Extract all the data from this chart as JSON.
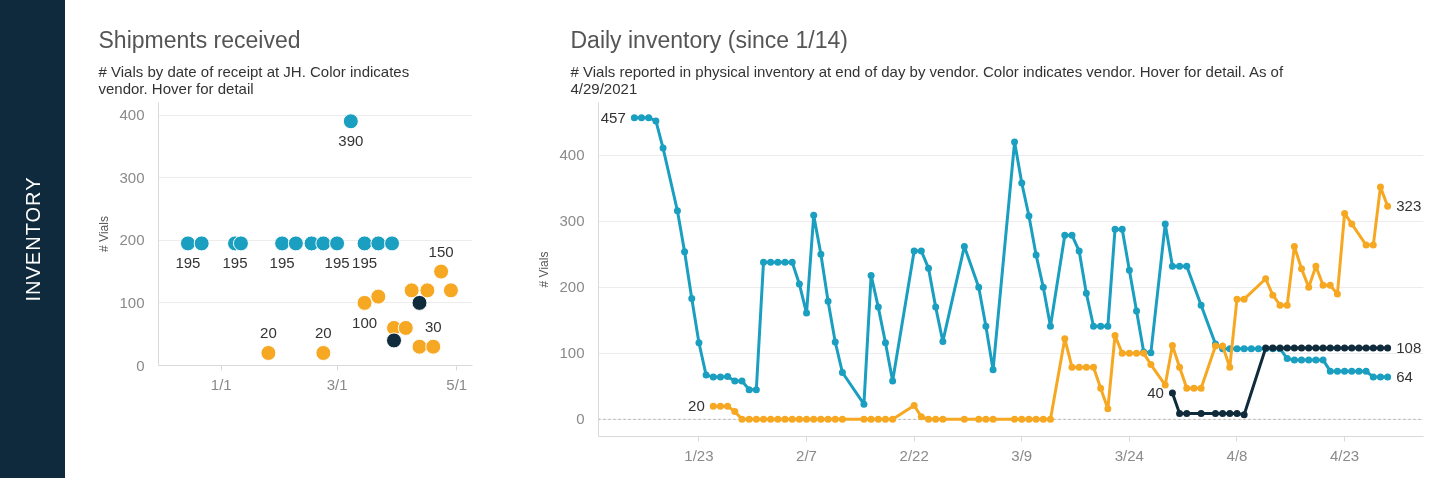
{
  "chart_data": [
    {
      "type": "other",
      "title": "INVENTORY"
    },
    {
      "type": "scatter",
      "title": "Shipments received",
      "subtitle": "# Vials by date of receipt at JH. Color indicates vendor. Hover for detail",
      "ylabel": "# Vials",
      "xlim": [
        "2020-11-30",
        "2021-05-09"
      ],
      "ylim": [
        0,
        420
      ],
      "xticks": [
        {
          "value": "2021-01-01",
          "label": "1/1"
        },
        {
          "value": "2021-03-01",
          "label": "3/1"
        },
        {
          "value": "2021-05-01",
          "label": "5/1"
        }
      ],
      "yticks": [
        0,
        100,
        200,
        300,
        400
      ],
      "grid": "y",
      "marker": "circle",
      "series": [
        {
          "color": "#1a9fc1",
          "x": [
            "2020-12-15",
            "2020-12-22",
            "2021-01-08",
            "2021-01-11",
            "2021-02-01",
            "2021-02-08",
            "2021-02-16",
            "2021-02-22",
            "2021-03-01",
            "2021-03-08",
            "2021-03-15",
            "2021-03-22",
            "2021-03-29"
          ],
          "values": [
            195,
            195,
            195,
            195,
            195,
            195,
            195,
            195,
            195,
            390,
            195,
            195,
            195
          ],
          "value_labels": [
            "195",
            null,
            "195",
            null,
            "195",
            null,
            null,
            null,
            "195",
            "390",
            "195",
            null,
            null
          ]
        },
        {
          "color": "#f7a823",
          "x": [
            "2021-01-25",
            "2021-02-22",
            "2021-03-15",
            "2021-03-22",
            "2021-03-30",
            "2021-04-05",
            "2021-04-08",
            "2021-04-12",
            "2021-04-16",
            "2021-04-19",
            "2021-04-23",
            "2021-04-28"
          ],
          "values": [
            20,
            20,
            100,
            110,
            60,
            60,
            120,
            30,
            120,
            30,
            150,
            120
          ],
          "value_labels": [
            "20",
            "20",
            "100",
            null,
            null,
            null,
            null,
            null,
            null,
            "30",
            "150",
            null
          ]
        },
        {
          "color": "#0f2b3c",
          "x": [
            "2021-03-30",
            "2021-04-12"
          ],
          "values": [
            40,
            100
          ]
        }
      ]
    },
    {
      "type": "line",
      "title": "Daily inventory (since 1/14)",
      "subtitle": "# Vials reported in physical inventory at end of day by vendor. Color indicates vendor. Hover for detail. As of 4/29/2021",
      "ylabel": "# Vials",
      "xlim": [
        "2021-01-09",
        "2021-05-04"
      ],
      "ylim": [
        -26,
        480
      ],
      "xticks": [
        {
          "value": "2021-01-23",
          "label": "1/23"
        },
        {
          "value": "2021-02-07",
          "label": "2/7"
        },
        {
          "value": "2021-02-22",
          "label": "2/22"
        },
        {
          "value": "2021-03-09",
          "label": "3/9"
        },
        {
          "value": "2021-03-24",
          "label": "3/24"
        },
        {
          "value": "2021-04-08",
          "label": "4/8"
        },
        {
          "value": "2021-04-23",
          "label": "4/23"
        }
      ],
      "yticks": [
        0,
        100,
        200,
        300,
        400
      ],
      "grid": "y",
      "marker": "circle",
      "line_style": "solid",
      "ref_lines": [
        {
          "axis": "y",
          "value": 0,
          "color": "#aaaaaa",
          "line_style": "dotted"
        }
      ],
      "series": [
        {
          "color": "#1a9fc1",
          "x": [
            "2021-01-14",
            "2021-01-15",
            "2021-01-16",
            "2021-01-17",
            "2021-01-18",
            "2021-01-20",
            "2021-01-21",
            "2021-01-22",
            "2021-01-23",
            "2021-01-24",
            "2021-01-25",
            "2021-01-26",
            "2021-01-27",
            "2021-01-28",
            "2021-01-29",
            "2021-01-30",
            "2021-01-31",
            "2021-02-01",
            "2021-02-02",
            "2021-02-03",
            "2021-02-04",
            "2021-02-05",
            "2021-02-06",
            "2021-02-07",
            "2021-02-08",
            "2021-02-09",
            "2021-02-10",
            "2021-02-11",
            "2021-02-12",
            "2021-02-15",
            "2021-02-16",
            "2021-02-17",
            "2021-02-18",
            "2021-02-19",
            "2021-02-22",
            "2021-02-23",
            "2021-02-24",
            "2021-02-25",
            "2021-02-26",
            "2021-03-01",
            "2021-03-03",
            "2021-03-04",
            "2021-03-05",
            "2021-03-08",
            "2021-03-09",
            "2021-03-10",
            "2021-03-11",
            "2021-03-12",
            "2021-03-13",
            "2021-03-15",
            "2021-03-16",
            "2021-03-17",
            "2021-03-18",
            "2021-03-19",
            "2021-03-20",
            "2021-03-21",
            "2021-03-22",
            "2021-03-23",
            "2021-03-24",
            "2021-03-25",
            "2021-03-26",
            "2021-03-27",
            "2021-03-29",
            "2021-03-30",
            "2021-03-31",
            "2021-04-01",
            "2021-04-03",
            "2021-04-05",
            "2021-04-06",
            "2021-04-07",
            "2021-04-08",
            "2021-04-09",
            "2021-04-10",
            "2021-04-11",
            "2021-04-12",
            "2021-04-13",
            "2021-04-14",
            "2021-04-15",
            "2021-04-16",
            "2021-04-17",
            "2021-04-18",
            "2021-04-19",
            "2021-04-20",
            "2021-04-21",
            "2021-04-22",
            "2021-04-23",
            "2021-04-24",
            "2021-04-25",
            "2021-04-26",
            "2021-04-27",
            "2021-04-28",
            "2021-04-29"
          ],
          "values": [
            457,
            457,
            457,
            452,
            411,
            316,
            254,
            183,
            116,
            67,
            64,
            64,
            65,
            58,
            58,
            45,
            45,
            238,
            238,
            238,
            238,
            238,
            205,
            161,
            309,
            250,
            179,
            117,
            71,
            23,
            218,
            170,
            116,
            58,
            255,
            255,
            229,
            170,
            118,
            262,
            200,
            141,
            75,
            420,
            358,
            308,
            249,
            200,
            141,
            279,
            279,
            255,
            191,
            141,
            141,
            141,
            288,
            288,
            226,
            164,
            102,
            101,
            296,
            232,
            232,
            232,
            173,
            114,
            107,
            107,
            107,
            107,
            107,
            107,
            107,
            107,
            107,
            92,
            90,
            90,
            90,
            90,
            90,
            73,
            73,
            73,
            73,
            73,
            73,
            64,
            64,
            64
          ],
          "value_labels": [
            "457",
            null,
            null,
            null,
            null,
            null,
            null,
            null,
            null,
            null,
            null,
            null,
            null,
            null,
            null,
            null,
            null,
            null,
            null,
            null,
            null,
            null,
            null,
            null,
            null,
            null,
            null,
            null,
            null,
            null,
            null,
            null,
            null,
            null,
            null,
            null,
            null,
            null,
            null,
            null,
            null,
            null,
            null,
            null,
            null,
            null,
            null,
            null,
            null,
            null,
            null,
            null,
            null,
            null,
            null,
            null,
            null,
            null,
            null,
            null,
            null,
            null,
            null,
            null,
            null,
            null,
            null,
            null,
            null,
            null,
            null,
            null,
            null,
            null,
            null,
            null,
            null,
            null,
            null,
            null,
            null,
            null,
            null,
            null,
            null,
            null,
            null,
            null,
            null,
            null,
            null,
            "64"
          ]
        },
        {
          "color": "#f7a823",
          "x": [
            "2021-01-25",
            "2021-01-26",
            "2021-01-27",
            "2021-01-28",
            "2021-01-29",
            "2021-01-30",
            "2021-01-31",
            "2021-02-01",
            "2021-02-02",
            "2021-02-03",
            "2021-02-04",
            "2021-02-05",
            "2021-02-06",
            "2021-02-07",
            "2021-02-08",
            "2021-02-09",
            "2021-02-10",
            "2021-02-11",
            "2021-02-12",
            "2021-02-15",
            "2021-02-16",
            "2021-02-17",
            "2021-02-18",
            "2021-02-19",
            "2021-02-22",
            "2021-02-23",
            "2021-02-24",
            "2021-02-25",
            "2021-02-26",
            "2021-03-01",
            "2021-03-03",
            "2021-03-04",
            "2021-03-05",
            "2021-03-08",
            "2021-03-09",
            "2021-03-10",
            "2021-03-11",
            "2021-03-12",
            "2021-03-13",
            "2021-03-15",
            "2021-03-16",
            "2021-03-17",
            "2021-03-18",
            "2021-03-19",
            "2021-03-20",
            "2021-03-21",
            "2021-03-22",
            "2021-03-23",
            "2021-03-24",
            "2021-03-25",
            "2021-03-26",
            "2021-03-27",
            "2021-03-29",
            "2021-03-30",
            "2021-03-31",
            "2021-04-01",
            "2021-04-02",
            "2021-04-03",
            "2021-04-05",
            "2021-04-06",
            "2021-04-07",
            "2021-04-08",
            "2021-04-09",
            "2021-04-12",
            "2021-04-13",
            "2021-04-14",
            "2021-04-15",
            "2021-04-16",
            "2021-04-17",
            "2021-04-18",
            "2021-04-19",
            "2021-04-20",
            "2021-04-21",
            "2021-04-22",
            "2021-04-23",
            "2021-04-24",
            "2021-04-26",
            "2021-04-27",
            "2021-04-28",
            "2021-04-29"
          ],
          "values": [
            20,
            20,
            20,
            12,
            0,
            0,
            0,
            0,
            0,
            0,
            0,
            0,
            0,
            0,
            0,
            0,
            0,
            0,
            0,
            0,
            0,
            0,
            0,
            0,
            21,
            4,
            0,
            0,
            0,
            0,
            0,
            0,
            0,
            0,
            0,
            0,
            0,
            0,
            0,
            122,
            79,
            79,
            79,
            79,
            47,
            16,
            127,
            100,
            100,
            100,
            100,
            83,
            52,
            112,
            79,
            47,
            47,
            47,
            111,
            111,
            79,
            182,
            182,
            213,
            188,
            173,
            173,
            262,
            228,
            200,
            232,
            203,
            203,
            190,
            312,
            296,
            264,
            264,
            352,
            323
          ],
          "value_labels": [
            "20",
            null,
            null,
            null,
            null,
            null,
            null,
            null,
            null,
            null,
            null,
            null,
            null,
            null,
            null,
            null,
            null,
            null,
            null,
            null,
            null,
            null,
            null,
            null,
            null,
            null,
            null,
            null,
            null,
            null,
            null,
            null,
            null,
            null,
            null,
            null,
            null,
            null,
            null,
            null,
            null,
            null,
            null,
            null,
            null,
            null,
            null,
            null,
            null,
            null,
            null,
            null,
            null,
            null,
            null,
            null,
            null,
            null,
            null,
            null,
            null,
            null,
            null,
            null,
            null,
            null,
            null,
            null,
            null,
            null,
            null,
            null,
            null,
            null,
            null,
            null,
            null,
            null,
            null,
            "323"
          ]
        },
        {
          "color": "#0f2b3c",
          "x": [
            "2021-03-30",
            "2021-03-31",
            "2021-04-01",
            "2021-04-03",
            "2021-04-05",
            "2021-04-06",
            "2021-04-07",
            "2021-04-08",
            "2021-04-09",
            "2021-04-12",
            "2021-04-13",
            "2021-04-14",
            "2021-04-15",
            "2021-04-16",
            "2021-04-17",
            "2021-04-18",
            "2021-04-19",
            "2021-04-20",
            "2021-04-21",
            "2021-04-22",
            "2021-04-23",
            "2021-04-24",
            "2021-04-25",
            "2021-04-26",
            "2021-04-27",
            "2021-04-28",
            "2021-04-29"
          ],
          "values": [
            40,
            9,
            9,
            9,
            9,
            9,
            9,
            9,
            7,
            108,
            108,
            108,
            108,
            108,
            108,
            108,
            108,
            108,
            108,
            108,
            108,
            108,
            108,
            108,
            108,
            108,
            108
          ],
          "value_labels": [
            "40",
            null,
            null,
            null,
            null,
            null,
            null,
            null,
            null,
            null,
            null,
            null,
            null,
            null,
            null,
            null,
            null,
            null,
            null,
            null,
            null,
            null,
            null,
            null,
            null,
            null,
            "108"
          ]
        }
      ]
    }
  ]
}
